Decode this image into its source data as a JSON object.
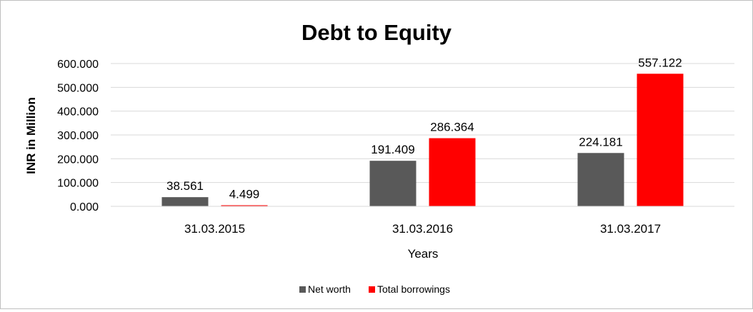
{
  "chart_data": {
    "type": "bar",
    "title": "Debt to Equity",
    "xlabel": "Years",
    "ylabel": "INR in Million",
    "categories": [
      "31.03.2015",
      "31.03.2016",
      "31.03.2017"
    ],
    "series": [
      {
        "name": "Net worth",
        "color": "#595959",
        "values": [
          38.561,
          191.409,
          224.181
        ],
        "labels": [
          "38.561",
          "191.409",
          "224.181"
        ]
      },
      {
        "name": "Total borrowings",
        "color": "#ff0000",
        "values": [
          4.499,
          286.364,
          557.122
        ],
        "labels": [
          "4.499",
          "286.364",
          "557.122"
        ]
      }
    ],
    "ylim": [
      0,
      600
    ],
    "yticks": [
      "0.000",
      "100.000",
      "200.000",
      "300.000",
      "400.000",
      "500.000",
      "600.000"
    ],
    "grid": true,
    "legend_position": "bottom"
  }
}
